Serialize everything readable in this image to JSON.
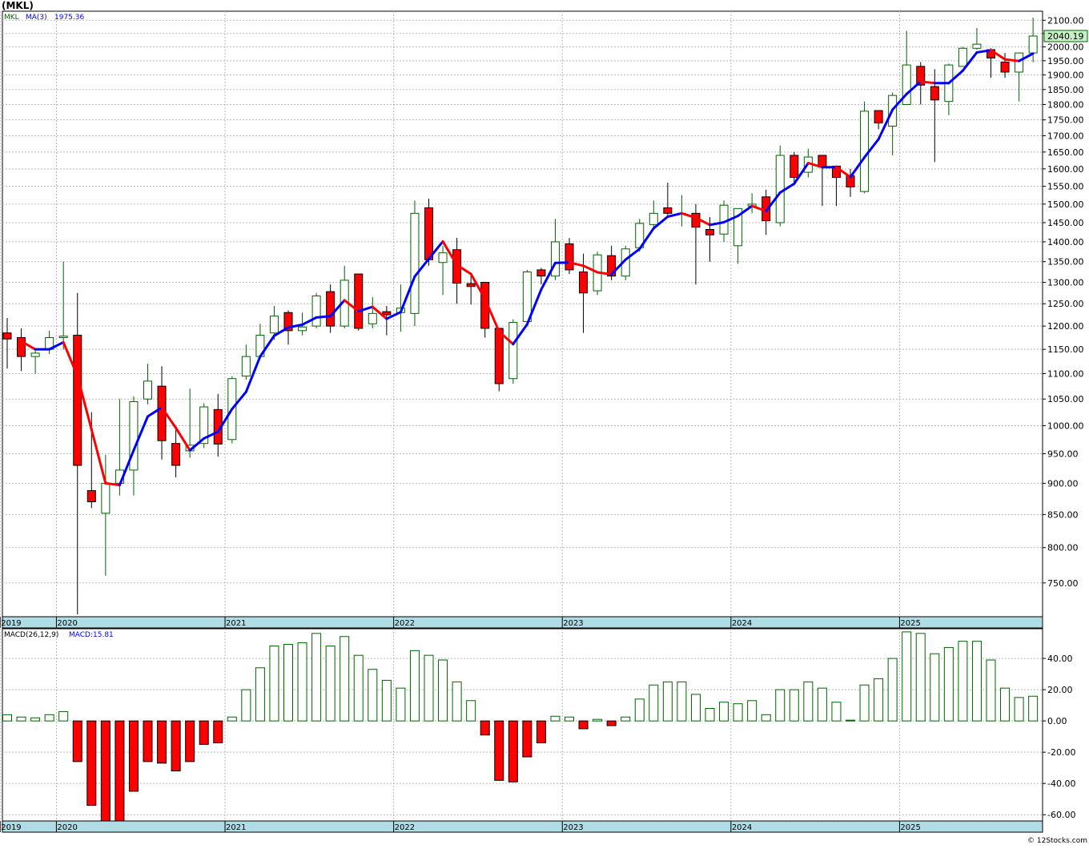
{
  "header": {
    "symbol_title": "(MKL)",
    "credit": "© 12Stocks.com"
  },
  "colors": {
    "up_outline": "#006400",
    "down_fill": "#ff0000",
    "ma_up": "#0000ff",
    "ma_down": "#ff0000",
    "hist_pos": "#006400",
    "hist_neg": "#ff0000",
    "axis_band": "#b0dce6",
    "grid": "#b8b8b8"
  },
  "chart_data": [
    {
      "type": "candlestick",
      "legend": {
        "symbol": "MKL",
        "ma_label": "MA(3)",
        "ma_value": "1975.36"
      },
      "last_price_label": "2040.19",
      "y_axis": {
        "scale": "log",
        "ylim": [
          705,
          2135
        ],
        "ticks": [
          750,
          800,
          850,
          900,
          950,
          1000,
          1050,
          1100,
          1150,
          1200,
          1250,
          1300,
          1350,
          1400,
          1450,
          1500,
          1550,
          1600,
          1650,
          1700,
          1750,
          1800,
          1850,
          1900,
          1950,
          2000,
          2050,
          2100
        ]
      },
      "x_axis": {
        "labels": [
          {
            "label": "2019",
            "index": -0.5
          },
          {
            "label": "2020",
            "index": 3.5
          },
          {
            "label": "2021",
            "index": 15.5
          },
          {
            "label": "2022",
            "index": 27.5
          },
          {
            "label": "2023",
            "index": 39.5
          },
          {
            "label": "2024",
            "index": 51.5
          },
          {
            "label": "2025",
            "index": 63.5
          }
        ]
      },
      "candles": [
        {
          "o": 1185,
          "h": 1218,
          "l": 1110,
          "c": 1172
        },
        {
          "o": 1175,
          "h": 1195,
          "l": 1105,
          "c": 1135
        },
        {
          "o": 1135,
          "h": 1150,
          "l": 1100,
          "c": 1142
        },
        {
          "o": 1150,
          "h": 1190,
          "l": 1140,
          "c": 1175
        },
        {
          "o": 1175,
          "h": 1350,
          "l": 1150,
          "c": 1178
        },
        {
          "o": 1180,
          "h": 1275,
          "l": 708,
          "c": 930
        },
        {
          "o": 888,
          "h": 1025,
          "l": 860,
          "c": 870
        },
        {
          "o": 852,
          "h": 948,
          "l": 760,
          "c": 900
        },
        {
          "o": 900,
          "h": 1050,
          "l": 880,
          "c": 922
        },
        {
          "o": 922,
          "h": 1055,
          "l": 880,
          "c": 1045
        },
        {
          "o": 1050,
          "h": 1120,
          "l": 1040,
          "c": 1085
        },
        {
          "o": 1075,
          "h": 1115,
          "l": 940,
          "c": 973
        },
        {
          "o": 968,
          "h": 1000,
          "l": 910,
          "c": 930
        },
        {
          "o": 955,
          "h": 1070,
          "l": 943,
          "c": 965
        },
        {
          "o": 968,
          "h": 1042,
          "l": 960,
          "c": 1035
        },
        {
          "o": 1030,
          "h": 1060,
          "l": 945,
          "c": 967
        },
        {
          "o": 975,
          "h": 1095,
          "l": 968,
          "c": 1090
        },
        {
          "o": 1095,
          "h": 1160,
          "l": 1088,
          "c": 1135
        },
        {
          "o": 1135,
          "h": 1205,
          "l": 1130,
          "c": 1180
        },
        {
          "o": 1185,
          "h": 1245,
          "l": 1170,
          "c": 1222
        },
        {
          "o": 1230,
          "h": 1235,
          "l": 1160,
          "c": 1190
        },
        {
          "o": 1190,
          "h": 1230,
          "l": 1180,
          "c": 1198
        },
        {
          "o": 1200,
          "h": 1275,
          "l": 1195,
          "c": 1268
        },
        {
          "o": 1278,
          "h": 1295,
          "l": 1185,
          "c": 1200
        },
        {
          "o": 1200,
          "h": 1340,
          "l": 1195,
          "c": 1305
        },
        {
          "o": 1320,
          "h": 1320,
          "l": 1190,
          "c": 1195
        },
        {
          "o": 1205,
          "h": 1265,
          "l": 1195,
          "c": 1228
        },
        {
          "o": 1232,
          "h": 1245,
          "l": 1180,
          "c": 1225
        },
        {
          "o": 1230,
          "h": 1295,
          "l": 1188,
          "c": 1240
        },
        {
          "o": 1228,
          "h": 1510,
          "l": 1200,
          "c": 1475
        },
        {
          "o": 1490,
          "h": 1515,
          "l": 1340,
          "c": 1355
        },
        {
          "o": 1348,
          "h": 1390,
          "l": 1270,
          "c": 1372
        },
        {
          "o": 1380,
          "h": 1410,
          "l": 1250,
          "c": 1298
        },
        {
          "o": 1297,
          "h": 1320,
          "l": 1248,
          "c": 1290
        },
        {
          "o": 1300,
          "h": 1300,
          "l": 1175,
          "c": 1195
        },
        {
          "o": 1195,
          "h": 1195,
          "l": 1065,
          "c": 1080
        },
        {
          "o": 1090,
          "h": 1215,
          "l": 1080,
          "c": 1208
        },
        {
          "o": 1210,
          "h": 1330,
          "l": 1200,
          "c": 1325
        },
        {
          "o": 1330,
          "h": 1335,
          "l": 1295,
          "c": 1315
        },
        {
          "o": 1315,
          "h": 1460,
          "l": 1305,
          "c": 1400
        },
        {
          "o": 1395,
          "h": 1410,
          "l": 1320,
          "c": 1330
        },
        {
          "o": 1325,
          "h": 1370,
          "l": 1185,
          "c": 1275
        },
        {
          "o": 1280,
          "h": 1375,
          "l": 1270,
          "c": 1367
        },
        {
          "o": 1365,
          "h": 1390,
          "l": 1305,
          "c": 1315
        },
        {
          "o": 1315,
          "h": 1390,
          "l": 1305,
          "c": 1382
        },
        {
          "o": 1385,
          "h": 1460,
          "l": 1375,
          "c": 1448
        },
        {
          "o": 1445,
          "h": 1510,
          "l": 1430,
          "c": 1475
        },
        {
          "o": 1490,
          "h": 1560,
          "l": 1470,
          "c": 1475
        },
        {
          "o": 1475,
          "h": 1525,
          "l": 1440,
          "c": 1475
        },
        {
          "o": 1475,
          "h": 1500,
          "l": 1295,
          "c": 1438
        },
        {
          "o": 1432,
          "h": 1465,
          "l": 1350,
          "c": 1418
        },
        {
          "o": 1420,
          "h": 1510,
          "l": 1400,
          "c": 1497
        },
        {
          "o": 1390,
          "h": 1475,
          "l": 1345,
          "c": 1488
        },
        {
          "o": 1495,
          "h": 1530,
          "l": 1475,
          "c": 1500
        },
        {
          "o": 1520,
          "h": 1540,
          "l": 1418,
          "c": 1455
        },
        {
          "o": 1450,
          "h": 1670,
          "l": 1440,
          "c": 1640
        },
        {
          "o": 1640,
          "h": 1650,
          "l": 1560,
          "c": 1575
        },
        {
          "o": 1590,
          "h": 1660,
          "l": 1575,
          "c": 1635
        },
        {
          "o": 1640,
          "h": 1640,
          "l": 1495,
          "c": 1605
        },
        {
          "o": 1608,
          "h": 1610,
          "l": 1495,
          "c": 1575
        },
        {
          "o": 1580,
          "h": 1600,
          "l": 1520,
          "c": 1548
        },
        {
          "o": 1535,
          "h": 1810,
          "l": 1530,
          "c": 1778
        },
        {
          "o": 1780,
          "h": 1780,
          "l": 1720,
          "c": 1740
        },
        {
          "o": 1730,
          "h": 1840,
          "l": 1640,
          "c": 1830
        },
        {
          "o": 1800,
          "h": 2060,
          "l": 1800,
          "c": 1935
        },
        {
          "o": 1930,
          "h": 1945,
          "l": 1800,
          "c": 1865
        },
        {
          "o": 1860,
          "h": 1920,
          "l": 1620,
          "c": 1815
        },
        {
          "o": 1810,
          "h": 1940,
          "l": 1765,
          "c": 1935
        },
        {
          "o": 1930,
          "h": 2000,
          "l": 1930,
          "c": 1995
        },
        {
          "o": 1995,
          "h": 2070,
          "l": 1990,
          "c": 2010
        },
        {
          "o": 1990,
          "h": 1995,
          "l": 1890,
          "c": 1960
        },
        {
          "o": 1945,
          "h": 1978,
          "l": 1890,
          "c": 1910
        },
        {
          "o": 1910,
          "h": 1980,
          "l": 1810,
          "c": 1978
        },
        {
          "o": 1978,
          "h": 2110,
          "l": 1945,
          "c": 2040.19
        }
      ],
      "ma": [
        null,
        1167,
        1150,
        1150,
        1165,
        1095,
        993,
        900,
        897,
        956,
        1017,
        1034,
        996,
        956,
        977,
        989,
        1031,
        1064,
        1135,
        1179,
        1197,
        1203,
        1219,
        1222,
        1258,
        1233,
        1243,
        1216,
        1231,
        1314,
        1357,
        1401,
        1342,
        1320,
        1261,
        1188,
        1161,
        1204,
        1283,
        1347,
        1348,
        1340,
        1324,
        1319,
        1355,
        1382,
        1435,
        1466,
        1475,
        1463,
        1444,
        1451,
        1468,
        1495,
        1481,
        1532,
        1557,
        1617,
        1605,
        1605,
        1576,
        1634,
        1689,
        1783,
        1835,
        1877,
        1872,
        1872,
        1915,
        1980,
        1988,
        1955,
        1949,
        1976
      ]
    },
    {
      "type": "bar",
      "legend": {
        "label": "MACD(26,12,9)",
        "value_label": "MACD:15.81"
      },
      "y_axis": {
        "ylim": [
          -64,
          59
        ],
        "ticks": [
          -60,
          -40,
          -20,
          0,
          20,
          40
        ]
      },
      "x_axis": {
        "labels": [
          {
            "label": "2019",
            "index": -0.5
          },
          {
            "label": "2020",
            "index": 3.5
          },
          {
            "label": "2021",
            "index": 15.5
          },
          {
            "label": "2022",
            "index": 27.5
          },
          {
            "label": "2023",
            "index": 39.5
          },
          {
            "label": "2024",
            "index": 51.5
          },
          {
            "label": "2025",
            "index": 63.5
          }
        ]
      },
      "values": [
        4,
        2.5,
        2,
        4,
        6,
        -26,
        -54,
        -64,
        -66,
        -45,
        -26,
        -27,
        -32,
        -26,
        -15,
        -14,
        2.5,
        20,
        34,
        48,
        49,
        50,
        56,
        48,
        54,
        42,
        33,
        26,
        21,
        45,
        42,
        39,
        25,
        13,
        -9,
        -38,
        -39,
        -23,
        -14,
        3,
        2.5,
        -5,
        1,
        -3,
        2.5,
        14,
        23,
        25,
        25,
        17,
        8,
        12,
        11,
        13,
        4,
        20,
        20,
        25,
        21,
        12,
        0.5,
        23,
        27,
        40,
        57,
        56,
        43,
        47,
        51,
        51,
        39,
        21,
        15,
        15.81
      ]
    }
  ]
}
